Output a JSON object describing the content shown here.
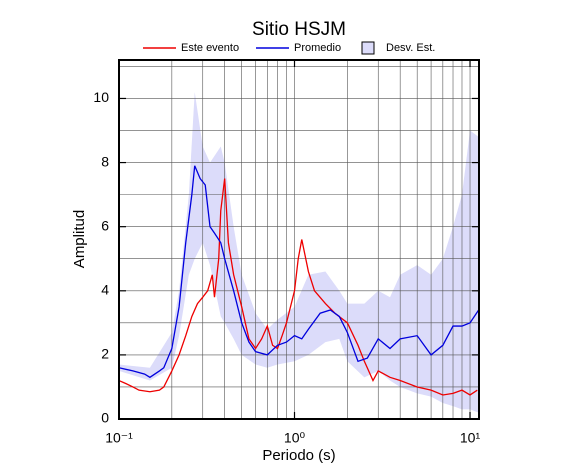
{
  "chart_data": {
    "type": "line",
    "title": "Sitio HSJM",
    "xlabel": "Periodo (s)",
    "ylabel": "Amplitud",
    "xscale": "log",
    "xlim": [
      0.1,
      11.25
    ],
    "ylim": [
      0,
      11.2
    ],
    "xticks": [
      {
        "value": 0.1,
        "label": "10⁻¹"
      },
      {
        "value": 1,
        "label": "10⁰"
      },
      {
        "value": 10,
        "label": "10¹"
      }
    ],
    "xminorticks": [
      0.2,
      0.3,
      0.4,
      0.5,
      0.6,
      0.7,
      0.8,
      0.9,
      2,
      3,
      4,
      5,
      6,
      7,
      8,
      9
    ],
    "yticks": [
      0,
      2,
      4,
      6,
      8,
      10
    ],
    "yminorticks": [
      1,
      3,
      5,
      7,
      9,
      11
    ],
    "grid": true,
    "series": [
      {
        "name": "Este evento",
        "color": "#ee0000",
        "x": [
          0.1,
          0.11,
          0.12,
          0.13,
          0.15,
          0.17,
          0.18,
          0.2,
          0.22,
          0.24,
          0.26,
          0.28,
          0.3,
          0.32,
          0.34,
          0.35,
          0.37,
          0.38,
          0.4,
          0.42,
          0.45,
          0.5,
          0.55,
          0.6,
          0.65,
          0.7,
          0.75,
          0.8,
          0.85,
          0.9,
          1.0,
          1.05,
          1.1,
          1.2,
          1.3,
          1.5,
          1.7,
          2.0,
          2.3,
          2.5,
          2.8,
          3.0,
          3.5,
          4,
          5,
          6,
          7,
          8,
          9,
          10,
          11
        ],
        "values": [
          1.2,
          1.1,
          1.0,
          0.9,
          0.85,
          0.9,
          1.0,
          1.5,
          2.0,
          2.6,
          3.2,
          3.6,
          3.8,
          4.0,
          4.5,
          3.8,
          5.0,
          6.5,
          7.5,
          5.5,
          4.5,
          3.5,
          2.5,
          2.2,
          2.5,
          2.9,
          2.3,
          2.2,
          2.6,
          3.0,
          4.0,
          5.0,
          5.6,
          4.6,
          4.0,
          3.6,
          3.3,
          3.0,
          2.3,
          1.8,
          1.2,
          1.5,
          1.3,
          1.2,
          1.0,
          0.9,
          0.75,
          0.8,
          0.9,
          0.75,
          0.9
        ]
      },
      {
        "name": "Promedio",
        "color": "#0000dd",
        "x": [
          0.1,
          0.12,
          0.14,
          0.15,
          0.17,
          0.18,
          0.2,
          0.22,
          0.24,
          0.26,
          0.27,
          0.29,
          0.31,
          0.33,
          0.35,
          0.38,
          0.4,
          0.45,
          0.5,
          0.55,
          0.6,
          0.7,
          0.8,
          0.9,
          1.0,
          1.1,
          1.2,
          1.4,
          1.6,
          1.8,
          2.0,
          2.3,
          2.6,
          3.0,
          3.5,
          4,
          5,
          6,
          7,
          8,
          9,
          10,
          11.2
        ],
        "values": [
          1.6,
          1.5,
          1.4,
          1.3,
          1.5,
          1.6,
          2.2,
          3.5,
          5.5,
          7.0,
          7.9,
          7.5,
          7.3,
          6.0,
          5.8,
          5.5,
          5.0,
          4.0,
          3.0,
          2.4,
          2.1,
          2.0,
          2.3,
          2.4,
          2.6,
          2.5,
          2.8,
          3.3,
          3.4,
          3.2,
          2.7,
          1.8,
          1.9,
          2.5,
          2.2,
          2.5,
          2.6,
          2.0,
          2.3,
          2.9,
          2.9,
          3.0,
          3.4
        ]
      }
    ],
    "band": {
      "name": "Desv. Est.",
      "color": "#dcdcfa",
      "x": [
        0.1,
        0.15,
        0.2,
        0.22,
        0.25,
        0.27,
        0.3,
        0.33,
        0.38,
        0.4,
        0.45,
        0.5,
        0.6,
        0.7,
        0.8,
        1.0,
        1.2,
        1.5,
        1.8,
        2.0,
        2.5,
        3,
        3.5,
        4,
        5,
        6,
        7,
        8,
        9,
        10,
        11.2
      ],
      "upper": [
        1.7,
        1.6,
        2.7,
        4,
        7,
        10.2,
        8.5,
        8,
        8.5,
        8,
        6,
        4.5,
        3.3,
        2.8,
        3.1,
        3.5,
        4.5,
        4.6,
        4.0,
        3.6,
        3.6,
        4,
        3.8,
        4.5,
        4.8,
        4.5,
        5,
        6,
        7,
        9,
        8.8
      ],
      "lower": [
        1.5,
        1.2,
        1.6,
        2.6,
        4.5,
        5,
        5.5,
        4.8,
        3.2,
        3,
        2.5,
        2,
        1.7,
        1.6,
        1.7,
        1.8,
        2,
        2.4,
        2.5,
        1.8,
        1.3,
        1.5,
        1.2,
        1,
        0.8,
        0.7,
        0.5,
        0.4,
        0.3,
        0.3,
        0.2
      ]
    }
  }
}
